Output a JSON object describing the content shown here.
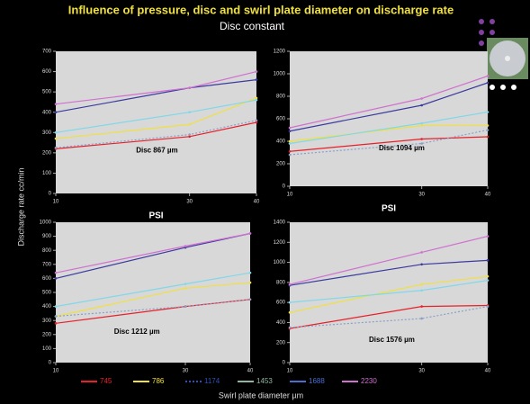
{
  "title": "Influence of pressure, disc and swirl plate diameter on discharge rate",
  "subtitle": "Disc constant",
  "y_label": "Discharge rate cc/min",
  "x_label": "Swirl plate diameter  µm",
  "legend": [
    {
      "name": "745",
      "color": "#e8202a"
    },
    {
      "name": "786",
      "color": "#f0e040"
    },
    {
      "name": "1174",
      "color": "#3050b8",
      "dashed": true
    },
    {
      "name": "1453",
      "color": "#8fb7a0"
    },
    {
      "name": "1688",
      "color": "#4a6fd0"
    },
    {
      "name": "2230",
      "color": "#d070d0"
    }
  ],
  "chart_data": [
    {
      "type": "line",
      "annotation": "Disc 867 µm",
      "x": [
        10,
        30,
        40
      ],
      "xlim": [
        10,
        40
      ],
      "xticks": [
        10,
        30,
        40
      ],
      "ylim": [
        0,
        700
      ],
      "yticks": [
        0,
        100,
        200,
        300,
        400,
        500,
        600,
        700
      ],
      "xlabel": "PSI",
      "series": [
        {
          "color": "#e8202a",
          "values": [
            220,
            280,
            350
          ]
        },
        {
          "color": "#f0e040",
          "values": [
            270,
            340,
            470
          ]
        },
        {
          "color": "#8aa0c8",
          "values": [
            225,
            290,
            360
          ]
        },
        {
          "color": "#80d8e8",
          "values": [
            300,
            400,
            460
          ]
        },
        {
          "color": "#3a3aa0",
          "values": [
            400,
            520,
            560
          ]
        },
        {
          "color": "#d070d0",
          "values": [
            440,
            520,
            600
          ]
        }
      ]
    },
    {
      "type": "line",
      "annotation": "Disc 1094 µm",
      "x": [
        10,
        30,
        40
      ],
      "xlim": [
        10,
        40
      ],
      "xticks": [
        10,
        30,
        40
      ],
      "ylim": [
        0,
        1200
      ],
      "yticks": [
        0,
        200,
        400,
        600,
        800,
        1000,
        1200
      ],
      "xlabel": "PSI",
      "series": [
        {
          "color": "#e8202a",
          "values": [
            310,
            420,
            440
          ]
        },
        {
          "color": "#f0e040",
          "values": [
            400,
            540,
            540
          ]
        },
        {
          "color": "#8aa0c8",
          "values": [
            280,
            380,
            500
          ]
        },
        {
          "color": "#80d8e8",
          "values": [
            380,
            560,
            660
          ]
        },
        {
          "color": "#3a3aa0",
          "values": [
            490,
            720,
            920
          ]
        },
        {
          "color": "#d070d0",
          "values": [
            520,
            780,
            980
          ]
        }
      ]
    },
    {
      "type": "line",
      "annotation": "Disc 1212 µm",
      "x": [
        10,
        30,
        40
      ],
      "xlim": [
        10,
        40
      ],
      "xticks": [
        10,
        30,
        40
      ],
      "ylim": [
        0,
        1000
      ],
      "yticks": [
        0,
        100,
        200,
        300,
        400,
        500,
        600,
        700,
        800,
        900,
        1000
      ],
      "series": [
        {
          "color": "#e8202a",
          "values": [
            280,
            400,
            450
          ]
        },
        {
          "color": "#f0e040",
          "values": [
            330,
            530,
            570
          ]
        },
        {
          "color": "#8aa0c8",
          "values": [
            330,
            400,
            450
          ]
        },
        {
          "color": "#80d8e8",
          "values": [
            400,
            560,
            640
          ]
        },
        {
          "color": "#3a3aa0",
          "values": [
            600,
            820,
            920
          ]
        },
        {
          "color": "#d070d0",
          "values": [
            640,
            830,
            920
          ]
        }
      ]
    },
    {
      "type": "line",
      "annotation": "Disc 1576 µm",
      "x": [
        10,
        30,
        40
      ],
      "xlim": [
        10,
        40
      ],
      "xticks": [
        10,
        30,
        40
      ],
      "ylim": [
        0,
        1400
      ],
      "yticks": [
        0,
        200,
        400,
        600,
        800,
        1000,
        1200,
        1400
      ],
      "series": [
        {
          "color": "#e8202a",
          "values": [
            340,
            560,
            570
          ]
        },
        {
          "color": "#f0e040",
          "values": [
            500,
            780,
            860
          ]
        },
        {
          "color": "#8aa0c8",
          "values": [
            350,
            440,
            560
          ]
        },
        {
          "color": "#80d8e8",
          "values": [
            600,
            720,
            820
          ]
        },
        {
          "color": "#3a3aa0",
          "values": [
            770,
            980,
            1020
          ]
        },
        {
          "color": "#d070d0",
          "values": [
            780,
            1100,
            1260
          ]
        }
      ]
    }
  ]
}
